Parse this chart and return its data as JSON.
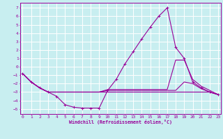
{
  "xlabel": "Windchill (Refroidissement éolien,°C)",
  "background_color": "#c8eef0",
  "grid_color": "#b0d8dc",
  "line_color": "#990099",
  "x_ticks": [
    0,
    1,
    2,
    3,
    4,
    5,
    6,
    7,
    8,
    9,
    10,
    11,
    12,
    13,
    14,
    15,
    16,
    17,
    18,
    19,
    20,
    21,
    22,
    23
  ],
  "y_ticks": [
    -5,
    -4,
    -3,
    -2,
    -1,
    0,
    1,
    2,
    3,
    4,
    5,
    6,
    7
  ],
  "xlim": [
    -0.3,
    23.3
  ],
  "ylim": [
    -5.6,
    7.6
  ],
  "lines": [
    {
      "x": [
        0,
        1,
        2,
        3,
        4,
        5,
        6,
        7,
        8,
        9,
        10,
        11,
        12,
        13,
        14,
        15,
        16,
        17,
        18,
        19,
        20,
        21,
        22,
        23
      ],
      "y": [
        -0.8,
        -1.8,
        -2.5,
        -3.0,
        -3.5,
        -4.5,
        -4.8,
        -4.9,
        -4.9,
        -4.9,
        -2.8,
        -1.5,
        0.3,
        1.8,
        3.3,
        4.7,
        6.0,
        7.0,
        2.3,
        1.0,
        -1.8,
        -2.5,
        -3.0,
        -3.3
      ],
      "marker": true
    },
    {
      "x": [
        0,
        1,
        2,
        3,
        4,
        5,
        6,
        7,
        8,
        9,
        10,
        11,
        12,
        13,
        14,
        15,
        16,
        17,
        18,
        19,
        20,
        21,
        22,
        23
      ],
      "y": [
        -0.8,
        -1.8,
        -2.5,
        -3.0,
        -3.0,
        -3.0,
        -3.0,
        -3.0,
        -3.0,
        -3.0,
        -2.7,
        -2.7,
        -2.7,
        -2.7,
        -2.7,
        -2.7,
        -2.7,
        -2.7,
        0.8,
        0.8,
        -1.5,
        -2.3,
        -2.8,
        -3.3
      ],
      "marker": false
    },
    {
      "x": [
        0,
        1,
        2,
        3,
        4,
        5,
        6,
        7,
        8,
        9,
        10,
        11,
        12,
        13,
        14,
        15,
        16,
        17,
        18,
        19,
        20,
        21,
        22,
        23
      ],
      "y": [
        -0.8,
        -1.8,
        -2.5,
        -3.0,
        -3.0,
        -3.0,
        -3.0,
        -3.0,
        -3.0,
        -3.0,
        -2.8,
        -2.8,
        -2.8,
        -2.8,
        -2.8,
        -2.8,
        -2.8,
        -2.8,
        -2.8,
        -1.8,
        -2.0,
        -2.6,
        -3.0,
        -3.3
      ],
      "marker": false
    },
    {
      "x": [
        0,
        1,
        2,
        3,
        4,
        5,
        6,
        7,
        8,
        9,
        10,
        11,
        12,
        13,
        14,
        15,
        16,
        17,
        18,
        19,
        20,
        21,
        22,
        23
      ],
      "y": [
        -0.8,
        -1.8,
        -2.5,
        -3.0,
        -3.0,
        -3.0,
        -3.0,
        -3.0,
        -3.0,
        -3.0,
        -3.0,
        -3.0,
        -3.0,
        -3.0,
        -3.0,
        -3.0,
        -3.0,
        -3.0,
        -3.0,
        -3.0,
        -3.0,
        -3.0,
        -3.0,
        -3.3
      ],
      "marker": false
    }
  ]
}
